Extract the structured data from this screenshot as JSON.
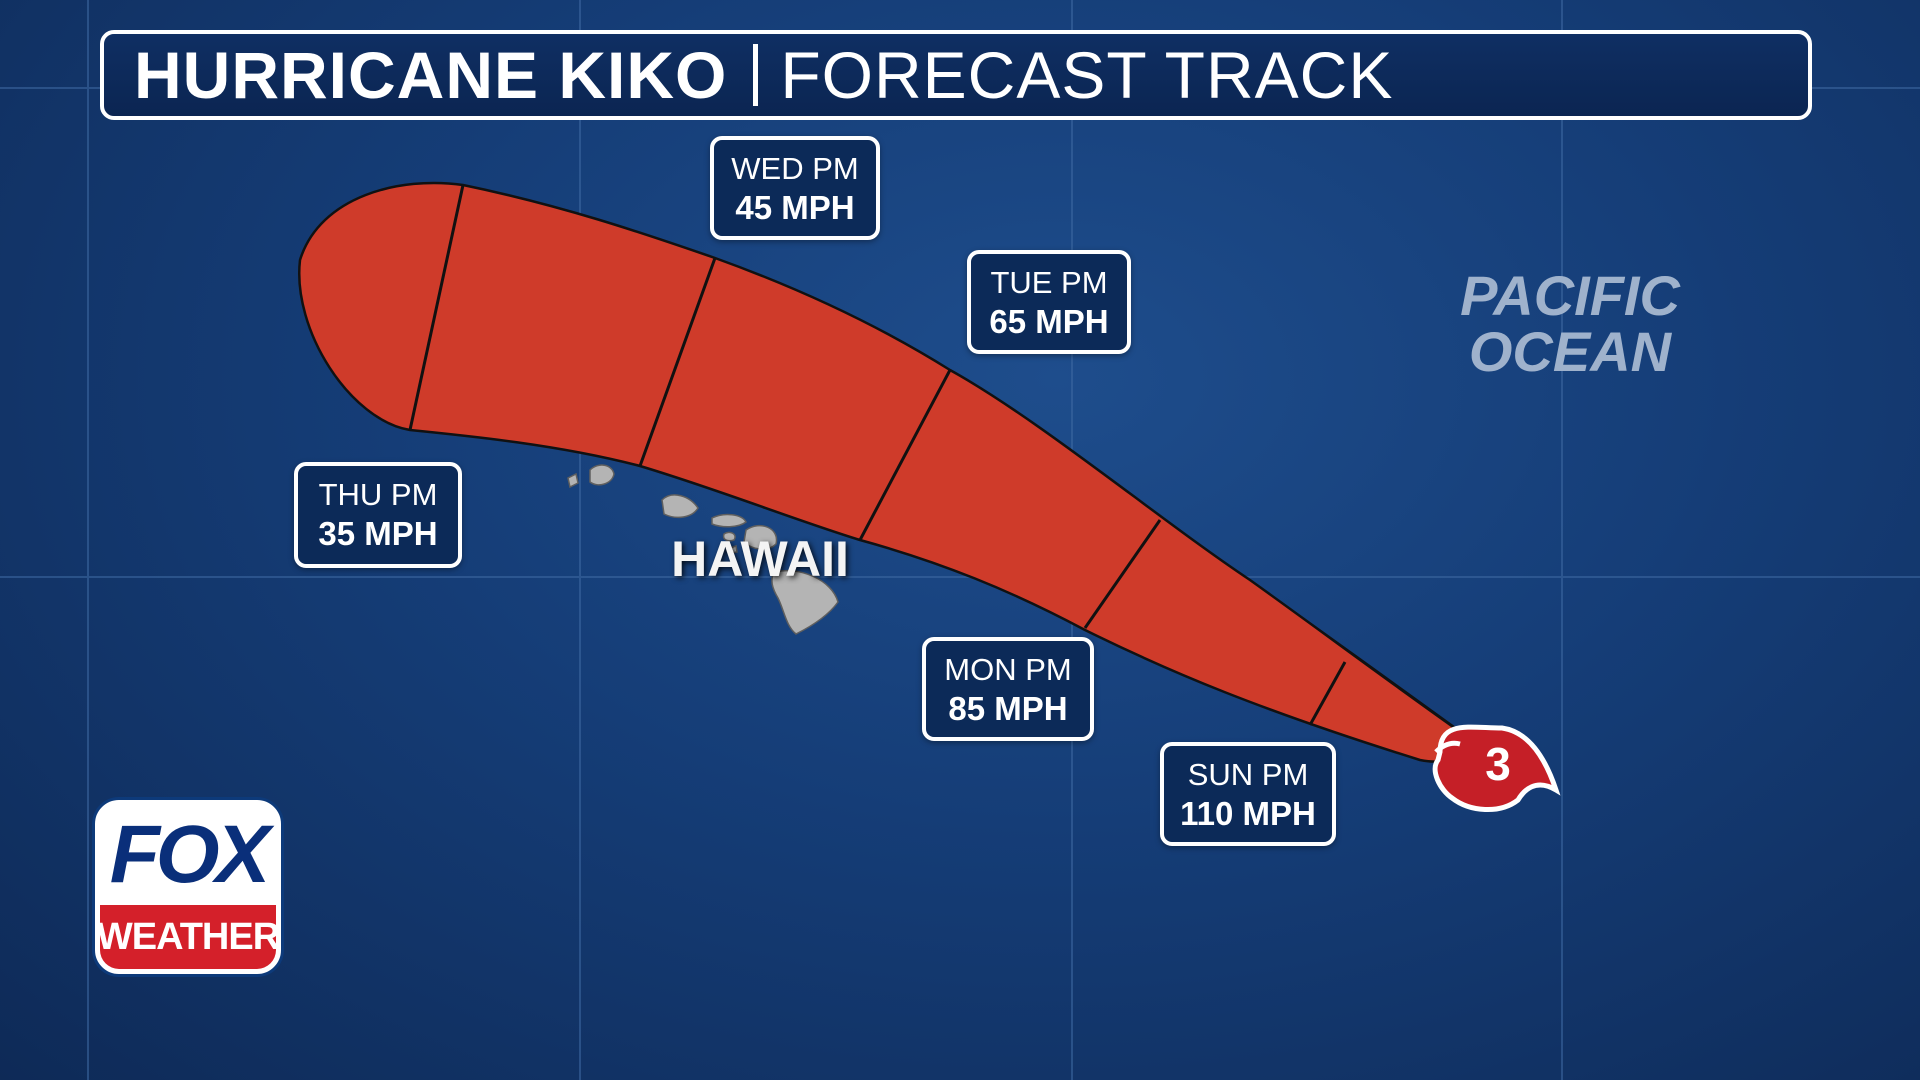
{
  "title": {
    "main": "HURRICANE KIKO",
    "sub": "FORECAST TRACK"
  },
  "forecast_points": [
    {
      "time": "THU PM",
      "speed": "35 MPH"
    },
    {
      "time": "WED PM",
      "speed": "45 MPH"
    },
    {
      "time": "TUE PM",
      "speed": "65 MPH"
    },
    {
      "time": "MON PM",
      "speed": "85 MPH"
    },
    {
      "time": "SUN PM",
      "speed": "110 MPH"
    }
  ],
  "current_storm": {
    "category": "3",
    "icon": "hurricane-icon"
  },
  "map_labels": {
    "ocean_line1": "PACIFIC",
    "ocean_line2": "OCEAN",
    "region": "HAWAII"
  },
  "logo": {
    "top": "FOX",
    "bottom": "WEATHER"
  },
  "colors": {
    "cone_fill": "#cf3b2a",
    "background": "#153d77",
    "label_box": "#0c2a58",
    "storm_icon": "#c51f27",
    "logo_red": "#d4202a",
    "logo_blue": "#0a2f7a"
  }
}
